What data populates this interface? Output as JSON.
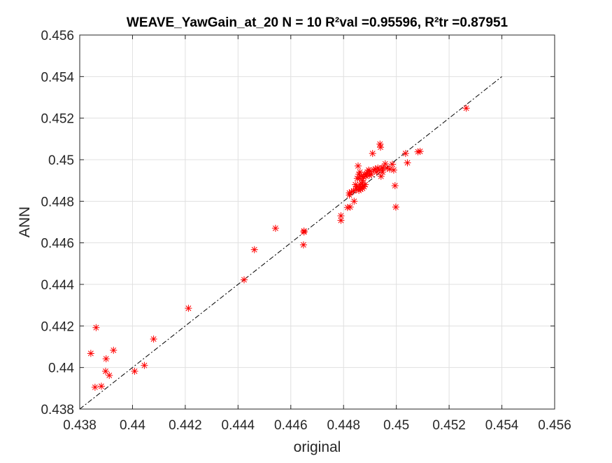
{
  "chart_data": {
    "type": "scatter",
    "title": "WEAVE_YawGain_at_20  N = 10 R²val =0.95596, R²tr =0.87951",
    "xlabel": "original",
    "ylabel": "ANN",
    "xlim": [
      0.438,
      0.456
    ],
    "ylim": [
      0.438,
      0.456
    ],
    "xticks": [
      "0.438",
      "0.44",
      "0.442",
      "0.444",
      "0.446",
      "0.448",
      "0.45",
      "0.452",
      "0.454",
      "0.456"
    ],
    "yticks": [
      "0.438",
      "0.44",
      "0.442",
      "0.444",
      "0.446",
      "0.448",
      "0.45",
      "0.452",
      "0.454",
      "0.456"
    ],
    "grid": true,
    "marker": "asterisk",
    "marker_color": "#ff0000",
    "reference_line": {
      "style": "dash-dot",
      "color": "#000000",
      "x": [
        0.438,
        0.454
      ],
      "y": [
        0.438,
        0.454
      ]
    },
    "series": [
      {
        "x": [
          0.43842,
          0.43858,
          0.43862,
          0.43882,
          0.43898,
          0.439,
          0.43912,
          0.43928,
          0.44008,
          0.44045,
          0.4408,
          0.44212,
          0.44423,
          0.44462,
          0.44542,
          0.44648,
          0.4465,
          0.4465,
          0.4479,
          0.4479,
          0.44815,
          0.44822,
          0.44822,
          0.44825,
          0.4483,
          0.44838,
          0.4484,
          0.44845,
          0.44848,
          0.4485,
          0.44852,
          0.44855,
          0.44858,
          0.44858,
          0.4486,
          0.4486,
          0.44862,
          0.44862,
          0.44865,
          0.44868,
          0.4487,
          0.44872,
          0.44872,
          0.44875,
          0.44878,
          0.4488,
          0.44882,
          0.44885,
          0.44888,
          0.4489,
          0.44895,
          0.44898,
          0.449,
          0.44905,
          0.4491,
          0.44915,
          0.4492,
          0.44925,
          0.4493,
          0.44935,
          0.44938,
          0.4494,
          0.44942,
          0.44945,
          0.44948,
          0.4495,
          0.44958,
          0.44965,
          0.44975,
          0.44985,
          0.4499,
          0.44995,
          0.44998,
          0.45035,
          0.45042,
          0.45082,
          0.4509,
          0.45265
        ],
        "y": [
          0.44068,
          0.43905,
          0.44192,
          0.4391,
          0.43982,
          0.44042,
          0.43962,
          0.44083,
          0.43982,
          0.4401,
          0.44137,
          0.44285,
          0.44422,
          0.44567,
          0.4467,
          0.4459,
          0.44652,
          0.44657,
          0.44708,
          0.4473,
          0.4477,
          0.4484,
          0.4483,
          0.44772,
          0.44845,
          0.4485,
          0.448,
          0.4488,
          0.4486,
          0.4487,
          0.4491,
          0.4497,
          0.44852,
          0.4493,
          0.44865,
          0.4491,
          0.4494,
          0.4488,
          0.44858,
          0.4492,
          0.44885,
          0.44862,
          0.449,
          0.44918,
          0.4487,
          0.4493,
          0.4488,
          0.4492,
          0.4493,
          0.4494,
          0.4495,
          0.44925,
          0.44945,
          0.4493,
          0.4503,
          0.4495,
          0.44955,
          0.4494,
          0.4496,
          0.4495,
          0.45075,
          0.4506,
          0.4492,
          0.4496,
          0.4494,
          0.4496,
          0.4498,
          0.4496,
          0.44955,
          0.44978,
          0.4495,
          0.44875,
          0.44772,
          0.4503,
          0.44985,
          0.45038,
          0.4504,
          0.45248
        ]
      }
    ]
  }
}
